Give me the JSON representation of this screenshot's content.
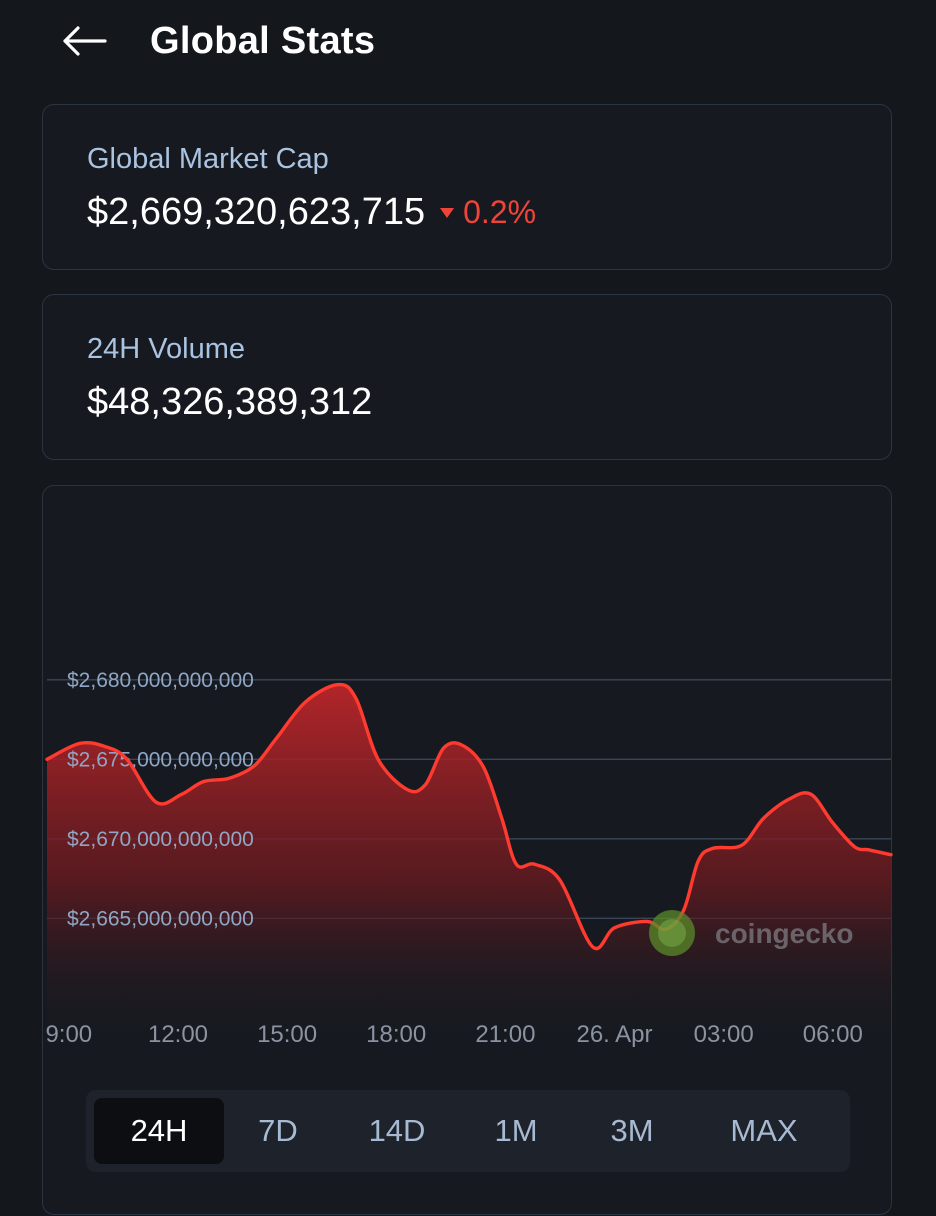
{
  "header": {
    "title": "Global Stats",
    "back_icon": "arrow-left-icon"
  },
  "market_cap": {
    "label": "Global Market Cap",
    "value": "$2,669,320,623,715",
    "change": "0.2%",
    "change_direction": "down",
    "change_color": "#f04438"
  },
  "volume": {
    "label": "24H Volume",
    "value": "$48,326,389,312"
  },
  "chart": {
    "watermark": "coingecko",
    "line_color": "#ff3b30"
  },
  "chart_data": {
    "type": "area",
    "title": "",
    "xlabel": "",
    "ylabel": "",
    "y_tick_labels": [
      "$2,680,000,000,000",
      "$2,675,000,000,000",
      "$2,670,000,000,000",
      "$2,665,000,000,000"
    ],
    "y_ticks": [
      2680000000000,
      2675000000000,
      2670000000000,
      2665000000000
    ],
    "x_tick_labels": [
      "9:00",
      "12:00",
      "15:00",
      "18:00",
      "21:00",
      "26. Apr",
      "03:00",
      "06:00"
    ],
    "x_tick_hours": [
      9,
      12,
      15,
      18,
      21,
      24,
      27,
      30
    ],
    "ylim": [
      2662000000000,
      2683700000000
    ],
    "xlim": [
      8.4,
      31.6
    ],
    "grid": true,
    "series": [
      {
        "x": [
          8.4,
          9.3,
          10.0,
          10.6,
          11.4,
          12.1,
          12.7,
          13.4,
          14.1,
          14.7,
          15.5,
          16.4,
          16.9,
          17.5,
          18.3,
          18.8,
          19.3,
          19.8,
          20.4,
          20.9,
          21.3,
          21.8,
          22.5,
          23.4,
          24.0,
          24.9,
          25.4,
          25.9,
          26.3,
          26.7,
          27.5,
          28.1,
          28.8,
          29.4,
          30.0,
          30.6,
          31.0,
          31.6
        ],
        "y": [
          2675000000000,
          2676000000000,
          2675800000000,
          2675000000000,
          2672300000000,
          2672800000000,
          2673600000000,
          2673800000000,
          2674600000000,
          2676300000000,
          2678600000000,
          2679700000000,
          2678800000000,
          2675000000000,
          2673100000000,
          2673400000000,
          2675700000000,
          2675900000000,
          2674500000000,
          2671300000000,
          2668400000000,
          2668400000000,
          2667400000000,
          2663200000000,
          2664400000000,
          2664800000000,
          2664300000000,
          2665500000000,
          2668600000000,
          2669400000000,
          2669600000000,
          2671300000000,
          2672500000000,
          2672800000000,
          2671000000000,
          2669500000000,
          2669300000000,
          2669000000000
        ]
      }
    ]
  },
  "ranges": {
    "items": [
      "24H",
      "7D",
      "14D",
      "1M",
      "3M",
      "MAX"
    ],
    "active_index": 0
  }
}
